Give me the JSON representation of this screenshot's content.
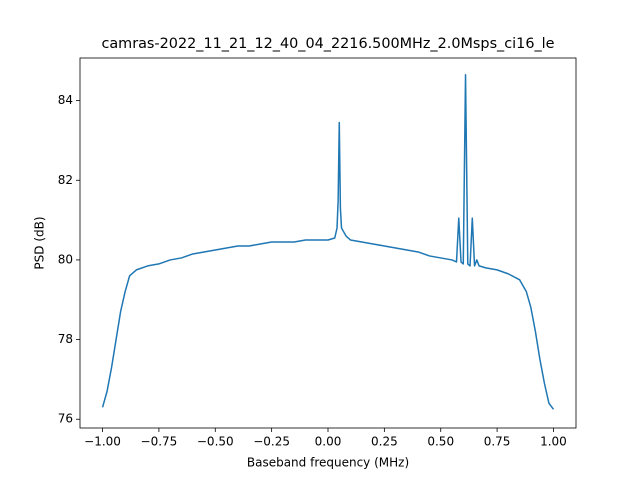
{
  "chart_data": {
    "type": "line",
    "title": "camras-2022_11_21_12_40_04_2216.500MHz_2.0Msps_ci16_le",
    "xlabel": "Baseband frequency (MHz)",
    "ylabel": "PSD (dB)",
    "color": "#1f77b4",
    "x": [
      -1.0,
      -0.98,
      -0.96,
      -0.94,
      -0.92,
      -0.9,
      -0.88,
      -0.85,
      -0.8,
      -0.75,
      -0.7,
      -0.65,
      -0.6,
      -0.55,
      -0.5,
      -0.45,
      -0.4,
      -0.35,
      -0.3,
      -0.25,
      -0.2,
      -0.15,
      -0.1,
      -0.05,
      0.0,
      0.03,
      0.04,
      0.045,
      0.05,
      0.055,
      0.06,
      0.08,
      0.1,
      0.15,
      0.2,
      0.25,
      0.3,
      0.35,
      0.4,
      0.45,
      0.5,
      0.55,
      0.57,
      0.58,
      0.59,
      0.6,
      0.61,
      0.62,
      0.63,
      0.64,
      0.65,
      0.66,
      0.67,
      0.7,
      0.75,
      0.8,
      0.85,
      0.88,
      0.9,
      0.92,
      0.94,
      0.96,
      0.98,
      1.0
    ],
    "values": [
      76.3,
      76.7,
      77.3,
      78.0,
      78.7,
      79.2,
      79.6,
      79.75,
      79.85,
      79.9,
      80.0,
      80.05,
      80.15,
      80.2,
      80.25,
      80.3,
      80.35,
      80.35,
      80.4,
      80.45,
      80.45,
      80.45,
      80.5,
      80.5,
      80.5,
      80.55,
      80.8,
      81.5,
      83.45,
      81.3,
      80.8,
      80.6,
      80.5,
      80.45,
      80.4,
      80.35,
      80.3,
      80.25,
      80.2,
      80.1,
      80.05,
      80.0,
      79.95,
      81.05,
      79.95,
      79.9,
      84.65,
      79.9,
      79.85,
      81.05,
      79.85,
      80.0,
      79.85,
      79.8,
      79.75,
      79.65,
      79.5,
      79.2,
      78.8,
      78.2,
      77.5,
      76.9,
      76.4,
      76.25
    ],
    "xlim": [
      -1.1,
      1.1
    ],
    "ylim": [
      75.78,
      85.07
    ],
    "xticks": [
      {
        "value": -1.0,
        "label": "−1.00"
      },
      {
        "value": -0.75,
        "label": "−0.75"
      },
      {
        "value": -0.5,
        "label": "−0.50"
      },
      {
        "value": -0.25,
        "label": "−0.25"
      },
      {
        "value": 0,
        "label": "0.00"
      },
      {
        "value": 0.25,
        "label": "0.25"
      },
      {
        "value": 0.5,
        "label": "0.50"
      },
      {
        "value": 0.75,
        "label": "0.75"
      },
      {
        "value": 1.0,
        "label": "1.00"
      }
    ],
    "yticks": [
      76,
      78,
      80,
      82,
      84
    ]
  }
}
